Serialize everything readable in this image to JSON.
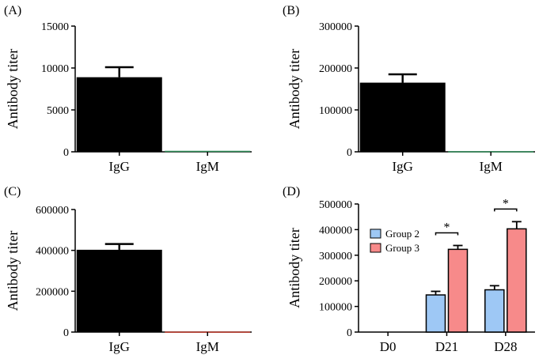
{
  "chart_data": [
    {
      "panel": "(A)",
      "type": "bar",
      "ylabel": "Antibody titer",
      "ylim": [
        0,
        15000
      ],
      "yticks": [
        "0",
        "5000",
        "10000",
        "15000"
      ],
      "ytick_values": [
        0,
        5000,
        10000,
        15000
      ],
      "categories": [
        "IgG",
        "IgM"
      ],
      "values": [
        8900,
        120
      ],
      "errors": [
        1200,
        0
      ],
      "colors": [
        "#000000",
        "#2e8b57"
      ]
    },
    {
      "panel": "(B)",
      "type": "bar",
      "ylabel": "Antibody titer",
      "ylim": [
        0,
        300000
      ],
      "yticks": [
        "0",
        "100000",
        "200000",
        "300000"
      ],
      "ytick_values": [
        0,
        100000,
        200000,
        300000
      ],
      "categories": [
        "IgG",
        "IgM"
      ],
      "values": [
        165000,
        1500
      ],
      "errors": [
        20000,
        0
      ],
      "colors": [
        "#000000",
        "#2e8b57"
      ]
    },
    {
      "panel": "(C)",
      "type": "bar",
      "ylabel": "Antibody titer",
      "ylim": [
        0,
        600000
      ],
      "yticks": [
        "0",
        "200000",
        "400000",
        "600000"
      ],
      "ytick_values": [
        0,
        200000,
        400000,
        600000
      ],
      "categories": [
        "IgG",
        "IgM"
      ],
      "values": [
        403000,
        2500
      ],
      "errors": [
        28000,
        0
      ],
      "colors": [
        "#000000",
        "#c0392b"
      ]
    },
    {
      "panel": "(D)",
      "type": "bar",
      "ylabel": "Antibody titer",
      "ylim": [
        0,
        500000
      ],
      "yticks": [
        "0",
        "100000",
        "200000",
        "300000",
        "400000",
        "500000"
      ],
      "ytick_values": [
        0,
        100000,
        200000,
        300000,
        400000,
        500000
      ],
      "categories": [
        "D0",
        "D21",
        "D28"
      ],
      "series": [
        {
          "name": "Group 2",
          "color": "#9ec8f5",
          "values": [
            0,
            145000,
            165000
          ],
          "errors": [
            0,
            14000,
            16000
          ]
        },
        {
          "name": "Group 3",
          "color": "#f78a8a",
          "values": [
            0,
            323000,
            403000
          ],
          "errors": [
            0,
            15000,
            28000
          ]
        }
      ],
      "annotations": [
        {
          "category": "D21",
          "text": "*"
        },
        {
          "category": "D28",
          "text": "*"
        }
      ],
      "legend_position": "top-left"
    }
  ]
}
